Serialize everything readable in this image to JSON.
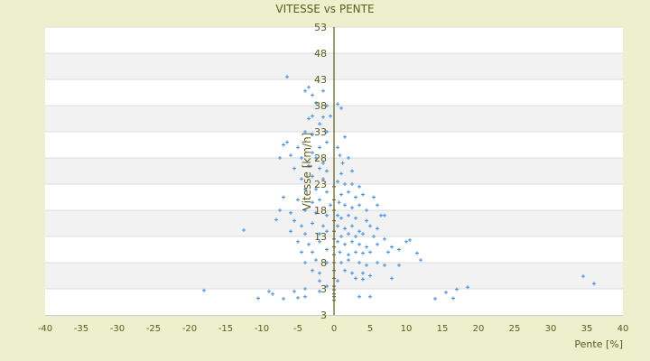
{
  "chart_data": {
    "type": "scatter",
    "title": "VITESSE vs PENTE",
    "xlabel": "Pente [%]",
    "ylabel": "Vitesse [km/h]",
    "xlim": [
      -40,
      40
    ],
    "ylim": [
      -2,
      53
    ],
    "x_ticks": [
      "-40",
      "-35",
      "-30",
      "-25",
      "-20",
      "-15",
      "-10",
      "-5",
      "0",
      "5",
      "10",
      "15",
      "20",
      "25",
      "30",
      "35",
      "40"
    ],
    "y_ticks": [
      "53",
      "48",
      "43",
      "38",
      "33",
      "28",
      "23",
      "18",
      "13",
      "8",
      "3",
      "3"
    ],
    "grid": "alternating horizontal bands",
    "colors": {
      "background": "#ecf0cc",
      "plot": "#ffffff",
      "band": "#f2f2f2",
      "axis": "#5a5a10",
      "point": "#3a8ee6",
      "text": "#5c5c1e"
    },
    "points": [
      [
        -6.5,
        43.5
      ],
      [
        -3.5,
        41.5
      ],
      [
        -4,
        40.8
      ],
      [
        -3,
        40
      ],
      [
        -1.5,
        40.8
      ],
      [
        -2.5,
        38.5
      ],
      [
        -1,
        38
      ],
      [
        0.5,
        38.3
      ],
      [
        1,
        37.5
      ],
      [
        -3,
        36
      ],
      [
        -3.5,
        35.5
      ],
      [
        -1.5,
        35.8
      ],
      [
        -0.5,
        36
      ],
      [
        -2,
        34.5
      ],
      [
        -4,
        33
      ],
      [
        -3,
        32.5
      ],
      [
        -1,
        33
      ],
      [
        -6.5,
        31
      ],
      [
        -7,
        30.5
      ],
      [
        -5,
        30
      ],
      [
        -2,
        30
      ],
      [
        -1,
        31
      ],
      [
        0.5,
        30
      ],
      [
        1.5,
        32
      ],
      [
        -7.5,
        28
      ],
      [
        -6,
        28.5
      ],
      [
        -4.5,
        28
      ],
      [
        -3,
        29
      ],
      [
        -2.5,
        28
      ],
      [
        -1.5,
        27
      ],
      [
        0.8,
        28.5
      ],
      [
        1.2,
        27
      ],
      [
        2,
        28
      ],
      [
        -5.5,
        26
      ],
      [
        -3.5,
        26.5
      ],
      [
        -2,
        26
      ],
      [
        -1,
        25.5
      ],
      [
        1,
        25
      ],
      [
        2.5,
        25.5
      ],
      [
        -4.5,
        24
      ],
      [
        -3,
        24.5
      ],
      [
        -1.5,
        24
      ],
      [
        0.5,
        23.5
      ],
      [
        1.5,
        23
      ],
      [
        2.5,
        23
      ],
      [
        3.5,
        22.5
      ],
      [
        -4,
        22
      ],
      [
        -2.5,
        22
      ],
      [
        -1,
        21.5
      ],
      [
        1,
        21
      ],
      [
        2,
        21.5
      ],
      [
        3,
        20.5
      ],
      [
        4,
        21
      ],
      [
        5.5,
        20.5
      ],
      [
        -7,
        20.5
      ],
      [
        -5,
        20
      ],
      [
        -3,
        19.5
      ],
      [
        -2,
        20
      ],
      [
        -0.5,
        19
      ],
      [
        0.7,
        19.5
      ],
      [
        1.5,
        19
      ],
      [
        2.5,
        18.5
      ],
      [
        3.5,
        19
      ],
      [
        4.5,
        18
      ],
      [
        6,
        19
      ],
      [
        -7.5,
        18
      ],
      [
        -6,
        17.5
      ],
      [
        -4,
        18
      ],
      [
        -2.5,
        17.5
      ],
      [
        -1,
        17
      ],
      [
        0.5,
        17
      ],
      [
        1,
        16.5
      ],
      [
        2,
        17
      ],
      [
        3,
        16.5
      ],
      [
        4.5,
        16
      ],
      [
        6.5,
        17
      ],
      [
        7,
        17
      ],
      [
        -8,
        16.2
      ],
      [
        -5.5,
        16
      ],
      [
        -4.5,
        15
      ],
      [
        -3,
        15.5
      ],
      [
        -1.5,
        15
      ],
      [
        0.5,
        15
      ],
      [
        1.5,
        14.5
      ],
      [
        2.5,
        15
      ],
      [
        3.5,
        14
      ],
      [
        5,
        15
      ],
      [
        6,
        14.5
      ],
      [
        -12.5,
        14.2
      ],
      [
        -6,
        14
      ],
      [
        -4,
        13.5
      ],
      [
        -2,
        13.5
      ],
      [
        -1,
        14
      ],
      [
        1,
        13
      ],
      [
        2,
        13.5
      ],
      [
        3,
        13
      ],
      [
        4,
        13.5
      ],
      [
        5.5,
        13
      ],
      [
        7,
        12.5
      ],
      [
        10,
        12
      ],
      [
        10.5,
        12.3
      ],
      [
        -5,
        12
      ],
      [
        -3.5,
        11.5
      ],
      [
        -2,
        12
      ],
      [
        0.5,
        12
      ],
      [
        1.5,
        11.5
      ],
      [
        2.5,
        12
      ],
      [
        3.5,
        11.5
      ],
      [
        4.5,
        11
      ],
      [
        6,
        11.5
      ],
      [
        8,
        11
      ],
      [
        9,
        10.5
      ],
      [
        -4.5,
        10
      ],
      [
        -3,
        10
      ],
      [
        -1,
        10.5
      ],
      [
        0.8,
        10
      ],
      [
        2,
        9.5
      ],
      [
        3,
        10
      ],
      [
        4,
        9.8
      ],
      [
        5,
        10
      ],
      [
        7.5,
        10
      ],
      [
        11.5,
        9.8
      ],
      [
        12,
        8.5
      ],
      [
        -4,
        8
      ],
      [
        -2.5,
        8.5
      ],
      [
        -1,
        8
      ],
      [
        1,
        8
      ],
      [
        2,
        8.5
      ],
      [
        3.5,
        8
      ],
      [
        4.5,
        7.5
      ],
      [
        6,
        8
      ],
      [
        7,
        7.5
      ],
      [
        9,
        7.5
      ],
      [
        -3,
        6.5
      ],
      [
        -2,
        6
      ],
      [
        1.5,
        6.5
      ],
      [
        2.5,
        6
      ],
      [
        4,
        6
      ],
      [
        5,
        5.5
      ],
      [
        8,
        5
      ],
      [
        -2,
        4.5
      ],
      [
        0.5,
        4.5
      ],
      [
        3,
        5
      ],
      [
        4,
        4.8
      ],
      [
        34.5,
        5.4
      ],
      [
        36,
        4
      ],
      [
        -4,
        3
      ],
      [
        -1,
        3.5
      ],
      [
        18.5,
        3.3
      ],
      [
        17,
        2.9
      ],
      [
        -18,
        2.7
      ],
      [
        -5.5,
        2.5
      ],
      [
        -2,
        2.5
      ],
      [
        15.5,
        2.3
      ],
      [
        -9,
        2.5
      ],
      [
        -8.5,
        2
      ],
      [
        -10.5,
        1.2
      ],
      [
        -7,
        1.1
      ],
      [
        -5,
        1.3
      ],
      [
        -4,
        1.5
      ],
      [
        3.5,
        1.5
      ],
      [
        5,
        1.5
      ],
      [
        14,
        1.1
      ],
      [
        16.5,
        1.2
      ],
      [
        0,
        0.8
      ],
      [
        0,
        1.5
      ],
      [
        0,
        2
      ],
      [
        0,
        2.8
      ],
      [
        0,
        3.5
      ],
      [
        0,
        5
      ],
      [
        0,
        6.5
      ],
      [
        0,
        8
      ],
      [
        0,
        9.5
      ],
      [
        0,
        11
      ],
      [
        0,
        12.5
      ],
      [
        0,
        14
      ],
      [
        0,
        16
      ],
      [
        0,
        18
      ],
      [
        0,
        20
      ],
      [
        0,
        22.5
      ]
    ]
  }
}
